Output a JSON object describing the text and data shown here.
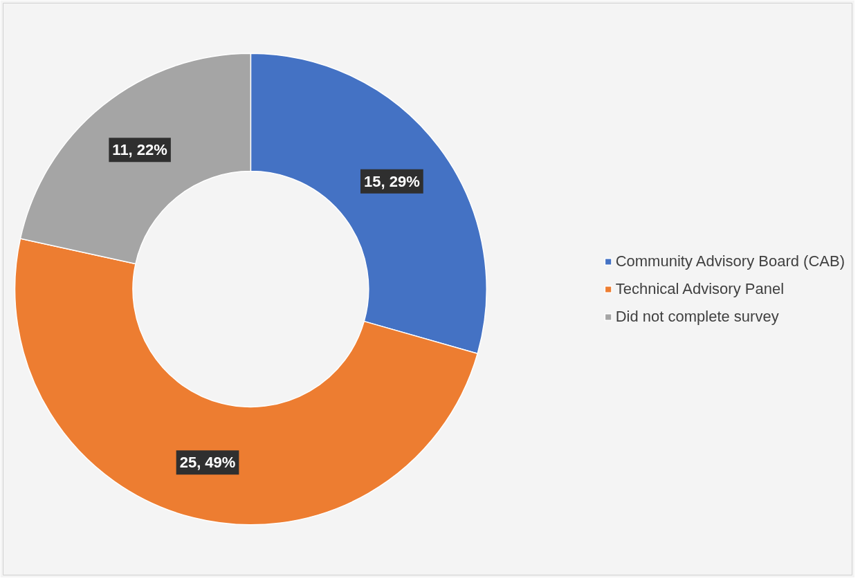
{
  "chart_data": {
    "type": "donut",
    "categories": [
      "Community Advisory Board (CAB)",
      "Technical Advisory Panel",
      "Did not complete survey"
    ],
    "values": [
      15,
      25,
      11
    ],
    "colors": [
      "#4472c4",
      "#ed7d31",
      "#a5a5a5"
    ],
    "value_labels": [
      "15, 29%",
      "25, 49%",
      "11, 22%"
    ],
    "legend": "right"
  }
}
